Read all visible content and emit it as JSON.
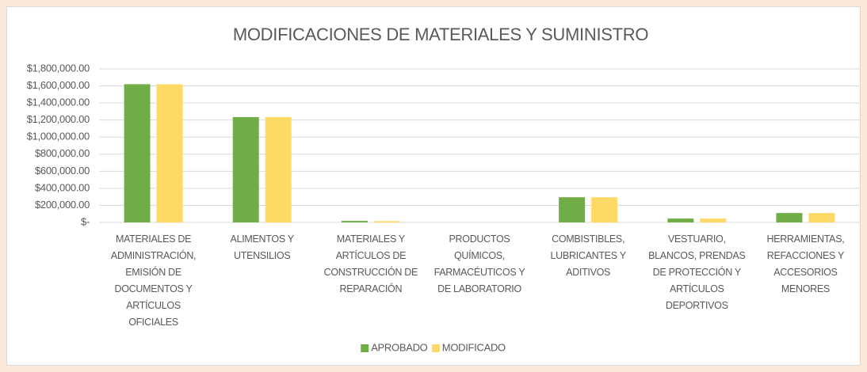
{
  "chart_data": {
    "type": "bar",
    "title": "MODIFICACIONES DE MATERIALES Y SUMINISTRO",
    "categories": [
      "MATERIALES DE ADMINISTRACIÓN, EMISIÓN DE DOCUMENTOS Y ARTÍCULOS OFICIALES",
      "ALIMENTOS Y UTENSILIOS",
      "MATERIALES Y ARTÍCULOS DE CONSTRUCCIÓN DE REPARACIÓN",
      "PRODUCTOS QUÍMICOS, FARMACÉUTICOS Y DE LABORATORIO",
      "COMBISTIBLES, LUBRICANTES Y ADITIVOS",
      "VESTUARIO, BLANCOS, PRENDAS DE PROTECCIÓN Y ARTÍCULOS DEPORTIVOS",
      "HERRAMIENTAS, REFACCIONES Y ACCESORIOS MENORES"
    ],
    "series": [
      {
        "name": "APROBADO",
        "color": "#70ad47",
        "values": [
          1620000,
          1235000,
          18000,
          0,
          295000,
          45000,
          110000
        ]
      },
      {
        "name": "MODIFICADO",
        "color": "#ffd966",
        "values": [
          1620000,
          1235000,
          15000,
          0,
          295000,
          45000,
          110000
        ]
      }
    ],
    "ylim": [
      0,
      1800000
    ],
    "yticks": [
      {
        "value": 0,
        "label": "$-"
      },
      {
        "value": 200000,
        "label": "$200,000.00"
      },
      {
        "value": 400000,
        "label": "$400,000.00"
      },
      {
        "value": 600000,
        "label": "$600,000.00"
      },
      {
        "value": 800000,
        "label": "$800,000.00"
      },
      {
        "value": 1000000,
        "label": "$1,000,000.00"
      },
      {
        "value": 1200000,
        "label": "$1,200,000.00"
      },
      {
        "value": 1400000,
        "label": "$1,400,000.00"
      },
      {
        "value": 1600000,
        "label": "$1,600,000.00"
      },
      {
        "value": 1800000,
        "label": "$1,800,000.00"
      }
    ],
    "grid": true,
    "legend": "bottom"
  }
}
